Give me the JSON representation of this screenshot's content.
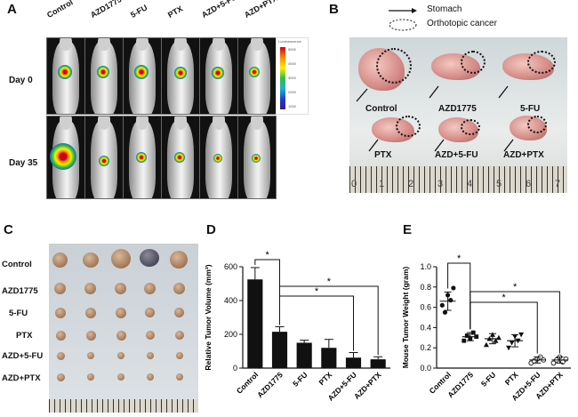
{
  "panels": {
    "a": "A",
    "b": "B",
    "c": "C",
    "d": "D",
    "e": "E"
  },
  "groups": [
    "Control",
    "AZD1775",
    "5-FU",
    "PTX",
    "AZD+5-FU",
    "AZD+PTX"
  ],
  "panel_a": {
    "days": [
      "Day 0",
      "Day 35"
    ],
    "colorbar_title": "Luminescence",
    "colorbar_ticks": [
      "5000",
      "4000",
      "3000",
      "2000",
      "1000"
    ]
  },
  "panel_b": {
    "legend_stomach": "Stomach",
    "legend_cancer": "Orthotopic cancer",
    "ruler_numbers": [
      "0",
      "1",
      "2",
      "3",
      "4",
      "5",
      "6",
      "7"
    ]
  },
  "panel_c": {
    "row_labels": [
      "Control",
      "AZD1775",
      "5-FU",
      "PTX",
      "AZD+5-FU",
      "AZD+PTX"
    ]
  },
  "chart_data": [
    {
      "type": "bar",
      "title": "",
      "xlabel": "",
      "ylabel": "Relative Tumor Volume (mm³)",
      "categories": [
        "Control",
        "AZD1775",
        "5-FU",
        "PTX",
        "AZD+5-FU",
        "AZD+PTX"
      ],
      "values": [
        525,
        215,
        150,
        120,
        62,
        52
      ],
      "errors": [
        70,
        30,
        15,
        50,
        30,
        15
      ],
      "ylim": [
        0,
        600
      ],
      "yticks": [
        0,
        200,
        400,
        600
      ],
      "significance": [
        {
          "from": "Control",
          "to": "AZD1775",
          "label": "*"
        },
        {
          "from": "AZD1775",
          "to": "AZD+PTX",
          "label": "*"
        },
        {
          "from": "AZD1775",
          "to": "AZD+5-FU",
          "label": "*"
        }
      ]
    },
    {
      "type": "scatter",
      "title": "",
      "xlabel": "",
      "ylabel": "Mouse Tumor Weight (gram)",
      "categories": [
        "Control",
        "AZD1775",
        "5-FU",
        "PTX",
        "AZD+5-FU",
        "AZD+PTX"
      ],
      "points": [
        [
          0.62,
          0.55,
          0.72,
          0.67,
          0.79
        ],
        [
          0.27,
          0.32,
          0.29,
          0.35,
          0.31
        ],
        [
          0.23,
          0.29,
          0.33,
          0.27,
          0.3
        ],
        [
          0.2,
          0.25,
          0.31,
          0.27,
          0.33
        ],
        [
          0.05,
          0.07,
          0.09,
          0.11,
          0.08
        ],
        [
          0.05,
          0.08,
          0.11,
          0.06,
          0.09
        ]
      ],
      "means": [
        0.66,
        0.31,
        0.29,
        0.27,
        0.08,
        0.08
      ],
      "sds": [
        0.09,
        0.04,
        0.05,
        0.06,
        0.03,
        0.03
      ],
      "ylim": [
        0.0,
        1.0
      ],
      "yticks": [
        0.0,
        0.2,
        0.4,
        0.6,
        0.8,
        1.0
      ],
      "significance": [
        {
          "from": "Control",
          "to": "AZD1775",
          "label": "*"
        },
        {
          "from": "AZD1775",
          "to": "AZD+PTX",
          "label": "*"
        },
        {
          "from": "AZD1775",
          "to": "AZD+5-FU",
          "label": "*"
        }
      ]
    }
  ]
}
